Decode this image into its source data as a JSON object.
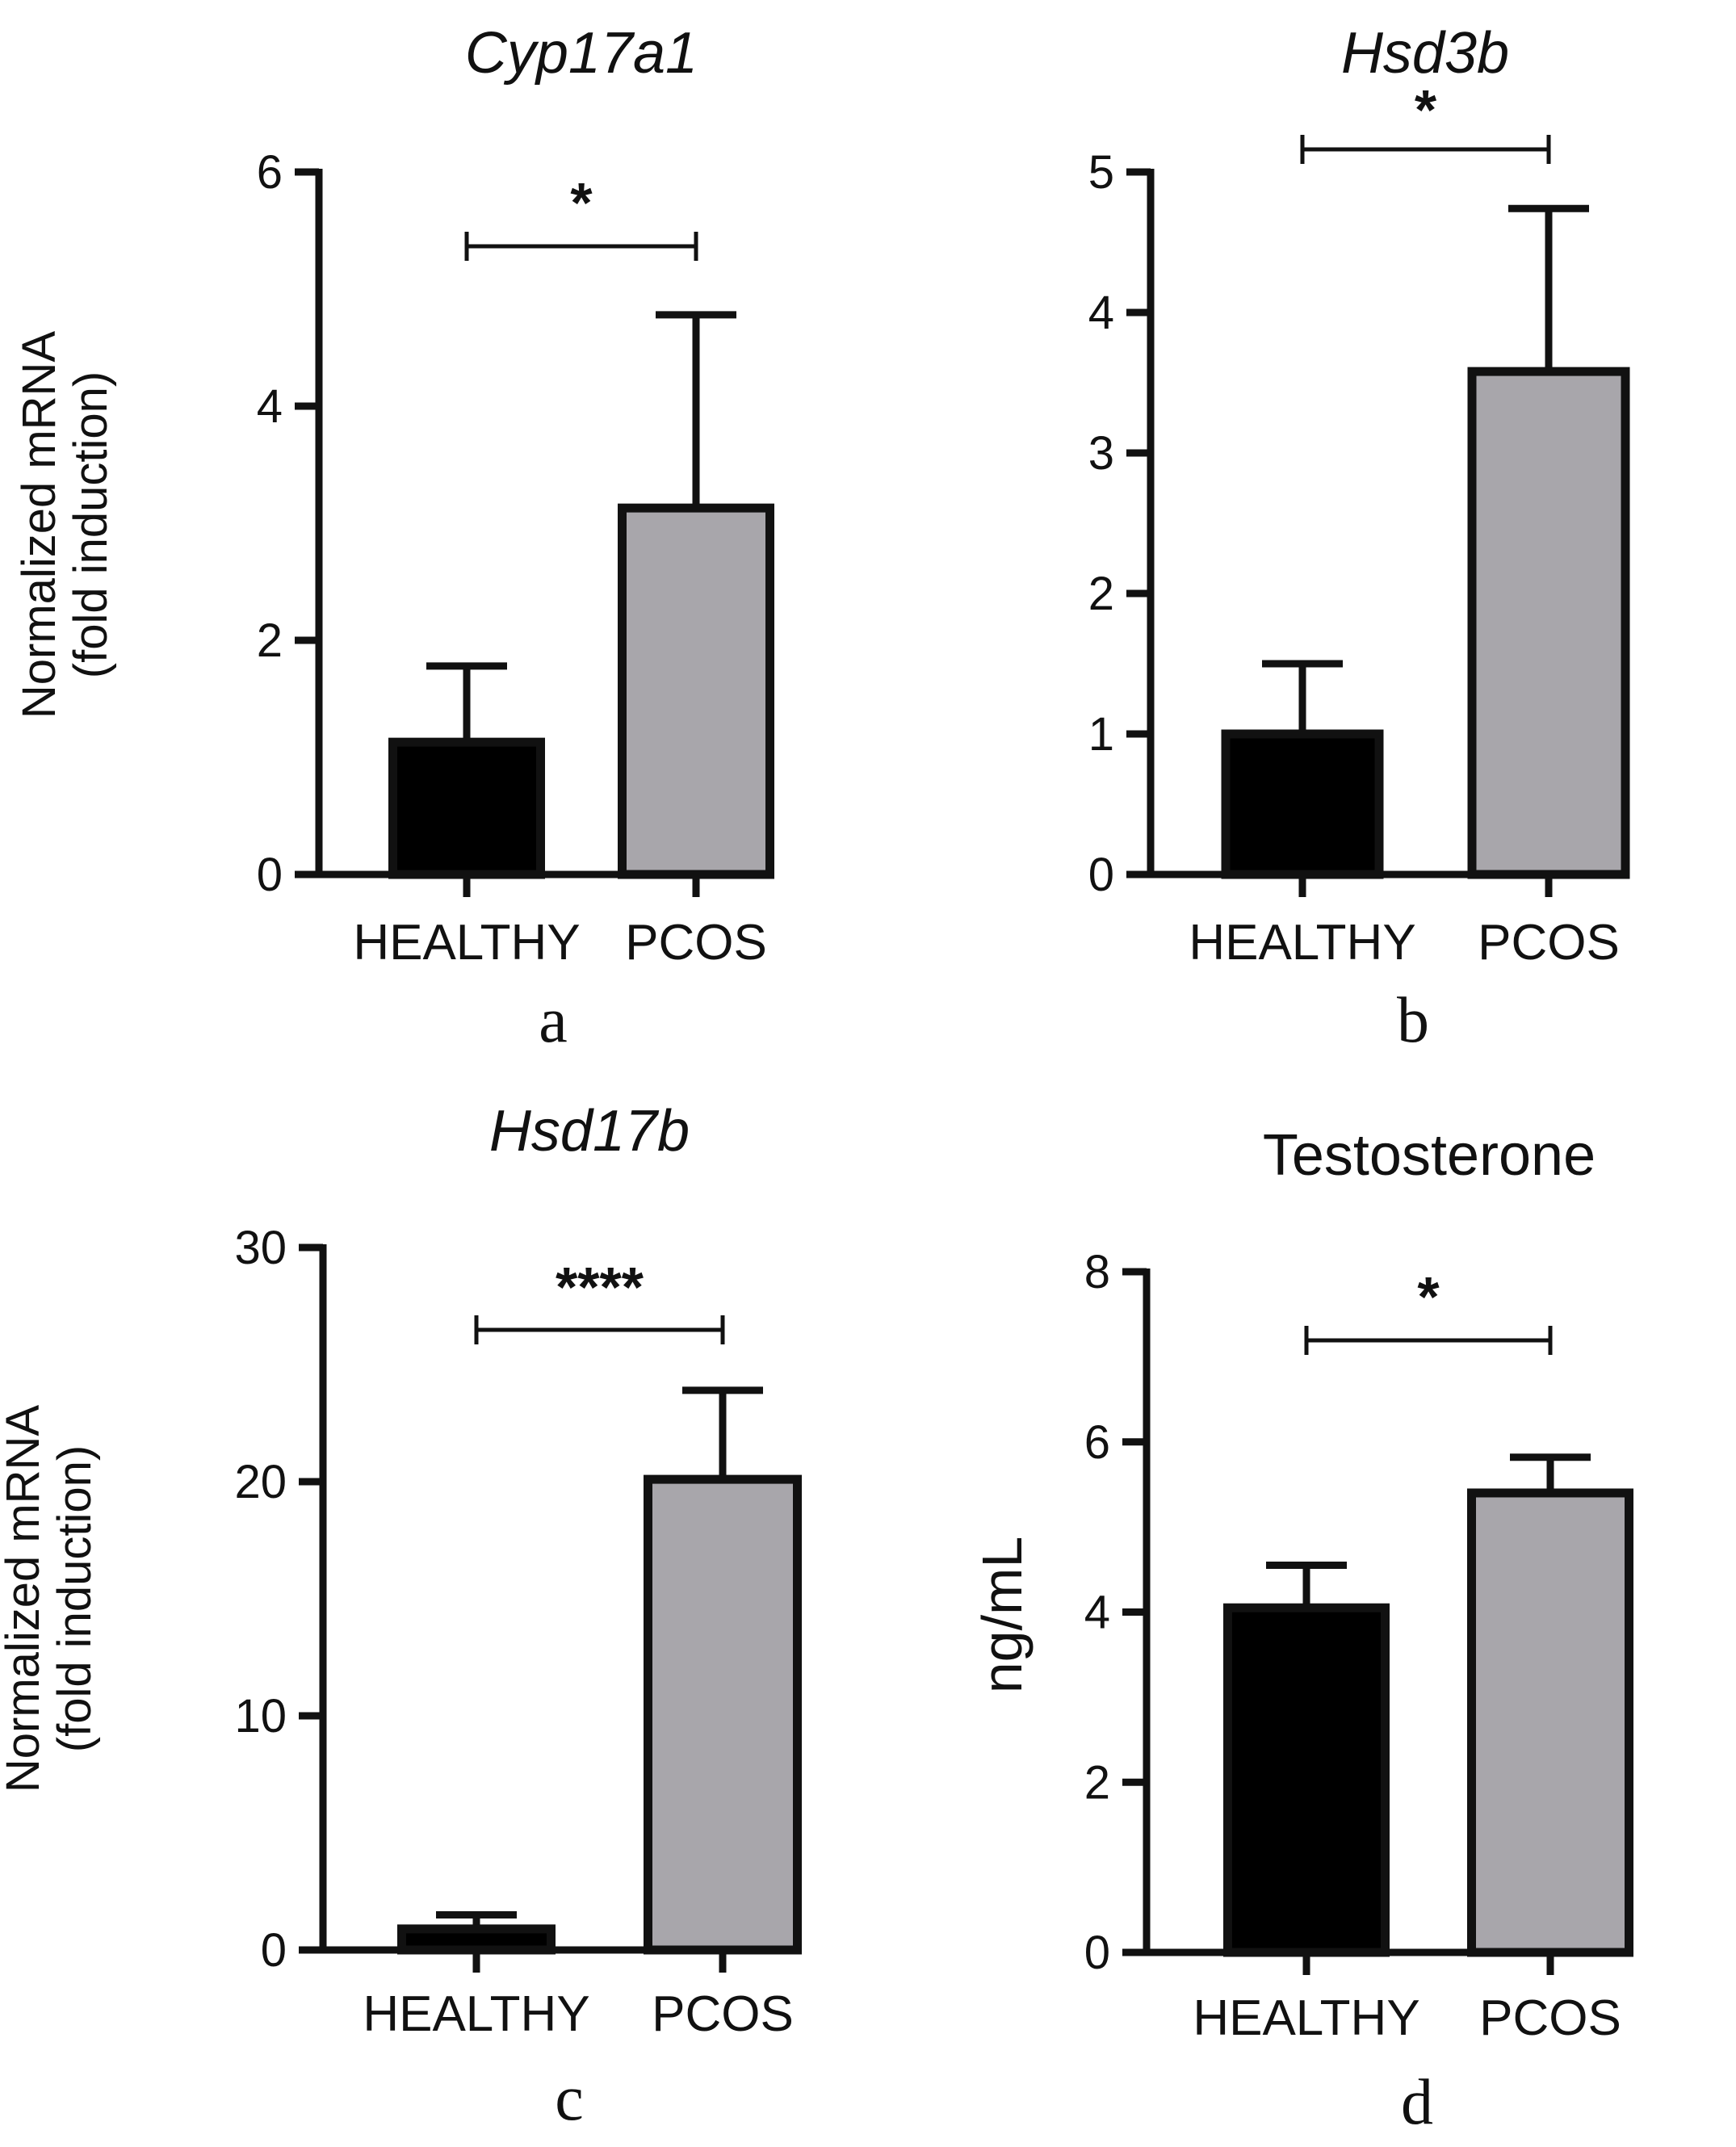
{
  "chart_data": [
    {
      "type": "bar",
      "panel_letter": "a",
      "title": "Cyp17a1",
      "title_italic": true,
      "ylabel_lines": [
        "Normalized mRNA",
        "(fold  induction)"
      ],
      "categories": [
        "HEALTHY",
        "PCOS"
      ],
      "values": [
        1.13,
        3.13
      ],
      "errors": [
        0.65,
        1.65
      ],
      "colors": [
        "#000000",
        "#a8a6ab"
      ],
      "ylim": [
        0,
        6
      ],
      "yticks": [
        0,
        2,
        4,
        6
      ],
      "significance": "*"
    },
    {
      "type": "bar",
      "panel_letter": "b",
      "title": "Hsd3b",
      "title_italic": true,
      "ylabel_lines": [],
      "categories": [
        "HEALTHY",
        "PCOS"
      ],
      "values": [
        1.0,
        3.58
      ],
      "errors": [
        0.5,
        1.16
      ],
      "colors": [
        "#000000",
        "#a8a6ab"
      ],
      "ylim": [
        0,
        5
      ],
      "yticks": [
        0,
        1,
        2,
        3,
        4,
        5
      ],
      "significance": "*"
    },
    {
      "type": "bar",
      "panel_letter": "c",
      "title": "Hsd17b",
      "title_italic": true,
      "ylabel_lines": [
        "Normalized mRNA",
        "(fold induction)"
      ],
      "categories": [
        "HEALTHY",
        "PCOS"
      ],
      "values": [
        0.9,
        20.1
      ],
      "errors": [
        0.6,
        3.8
      ],
      "colors": [
        "#000000",
        "#a8a6ab"
      ],
      "ylim": [
        0,
        30
      ],
      "yticks": [
        0,
        10,
        20,
        30
      ],
      "significance": "****"
    },
    {
      "type": "bar",
      "panel_letter": "d",
      "title": "Testosterone",
      "title_italic": false,
      "ylabel_lines": [
        "ng/mL"
      ],
      "categories": [
        "HEALTHY",
        "PCOS"
      ],
      "values": [
        4.05,
        5.4
      ],
      "errors": [
        0.5,
        0.42
      ],
      "colors": [
        "#000000",
        "#a8a6ab"
      ],
      "ylim": [
        0,
        8
      ],
      "yticks": [
        0,
        2,
        4,
        6,
        8
      ],
      "significance": "*"
    }
  ]
}
